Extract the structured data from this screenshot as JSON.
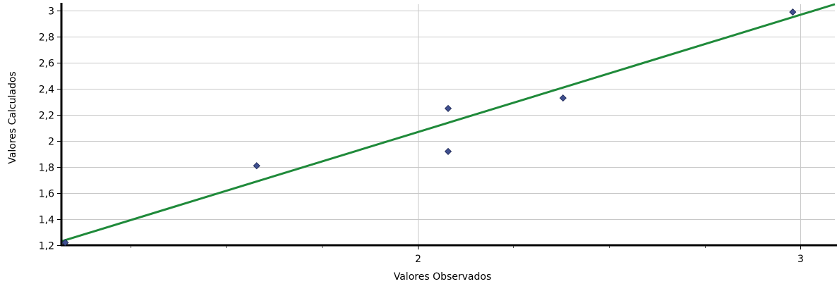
{
  "chart_data": {
    "type": "scatter",
    "title": "",
    "xlabel": "Valores Observados",
    "ylabel": "Valores Calculados",
    "xlim": [
      1.07,
      3.09
    ],
    "ylim": [
      1.2,
      3.05
    ],
    "x_ticks": [
      2,
      3
    ],
    "x_tick_labels": [
      "2",
      "3"
    ],
    "x_minor_ticks": [
      1.25,
      1.5,
      1.75,
      2.25,
      2.5,
      2.75
    ],
    "y_ticks": [
      1.2,
      1.4,
      1.6,
      1.8,
      2.0,
      2.2,
      2.4,
      2.6,
      2.8,
      3.0
    ],
    "y_tick_labels": [
      "1,2",
      "1,4",
      "1,6",
      "1,8",
      "2",
      "2,2",
      "2,4",
      "2,6",
      "2,8",
      "3"
    ],
    "grid": true,
    "legend": "none",
    "series": [
      {
        "points": [
          {
            "x": 1.08,
            "y": 1.22
          },
          {
            "x": 1.58,
            "y": 1.81
          },
          {
            "x": 2.08,
            "y": 2.25
          },
          {
            "x": 2.08,
            "y": 1.92
          },
          {
            "x": 2.38,
            "y": 2.33
          },
          {
            "x": 2.98,
            "y": 2.99
          }
        ],
        "color": "#3f4f8f"
      }
    ],
    "fit_line": {
      "from": {
        "x": 1.07,
        "y": 1.23
      },
      "to": {
        "x": 3.09,
        "y": 3.05
      },
      "color": "#1f8a3a"
    }
  }
}
